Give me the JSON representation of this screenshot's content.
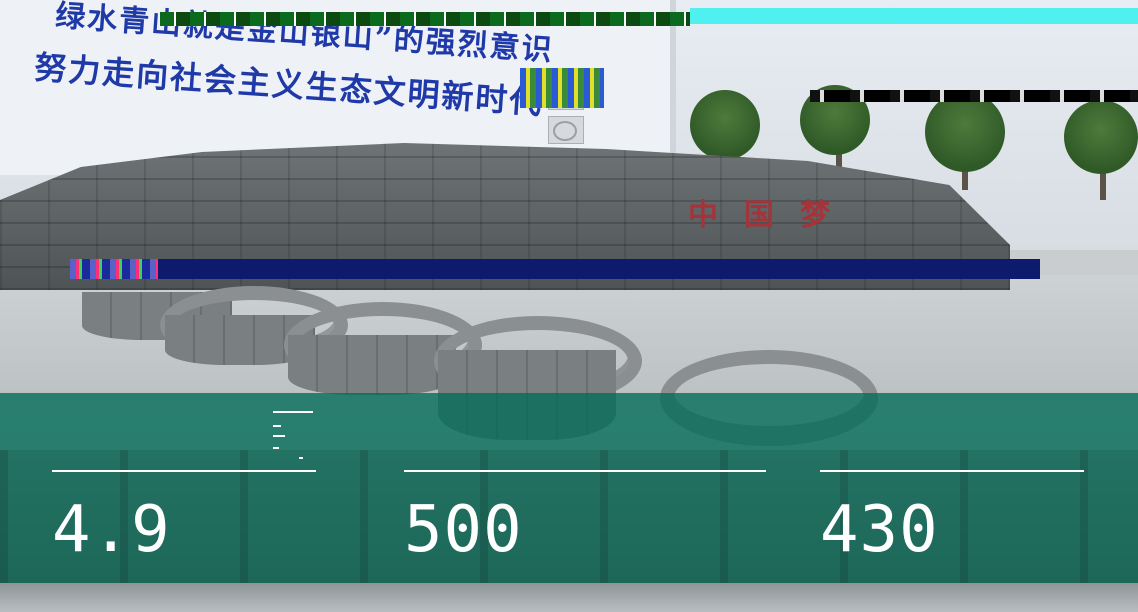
{
  "photo": {
    "building_slogan_line1": "绿水青山就是金山银山”的强烈意识",
    "building_slogan_line2": "努力走向社会主义生态文明新时代",
    "wall_sign": "中国梦"
  },
  "stats": [
    {
      "value": "4.9"
    },
    {
      "value": "500"
    },
    {
      "value": "430"
    }
  ],
  "colors": {
    "overlay": "#006c58",
    "text": "#ffffff",
    "slogan": "#1f3aa8",
    "wall_sign": "#a5333a"
  }
}
